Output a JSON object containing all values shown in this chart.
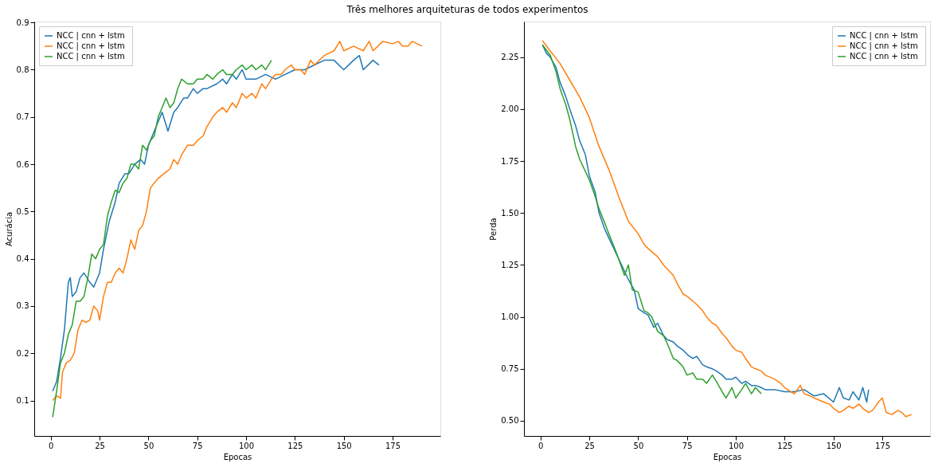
{
  "chart_data": [
    {
      "type": "line",
      "title": "Três melhores arquiteturas de todos experimentos",
      "xlabel": "Epocas",
      "ylabel": "Acurácia",
      "legend": "top left",
      "grid": false,
      "xlim": [
        -8.45,
        199.45
      ],
      "ylim": [
        0.025,
        0.902
      ],
      "xticks": [
        0,
        25,
        50,
        75,
        100,
        125,
        150,
        175
      ],
      "yticks": [
        0.1,
        0.2,
        0.3,
        0.4,
        0.5,
        0.6,
        0.7,
        0.8,
        0.9
      ],
      "series": [
        {
          "name": "NCC |  cnn + lstm",
          "color": "#1f77b4",
          "x": [
            1,
            3,
            5,
            7,
            9,
            10,
            11,
            13,
            15,
            17,
            20,
            22,
            25,
            27,
            30,
            33,
            35,
            38,
            40,
            43,
            46,
            48,
            50,
            53,
            55,
            57,
            60,
            63,
            65,
            68,
            70,
            73,
            75,
            78,
            80,
            85,
            88,
            90,
            93,
            95,
            98,
            100,
            105,
            110,
            115,
            120,
            125,
            130,
            135,
            140,
            145,
            150,
            155,
            158,
            160,
            165,
            168
          ],
          "values": [
            0.12,
            0.14,
            0.19,
            0.25,
            0.35,
            0.36,
            0.32,
            0.33,
            0.36,
            0.37,
            0.35,
            0.34,
            0.37,
            0.42,
            0.48,
            0.52,
            0.56,
            0.58,
            0.58,
            0.6,
            0.61,
            0.6,
            0.64,
            0.67,
            0.69,
            0.71,
            0.67,
            0.71,
            0.72,
            0.74,
            0.74,
            0.76,
            0.75,
            0.76,
            0.76,
            0.77,
            0.78,
            0.77,
            0.79,
            0.78,
            0.8,
            0.78,
            0.78,
            0.79,
            0.78,
            0.79,
            0.8,
            0.8,
            0.81,
            0.82,
            0.82,
            0.8,
            0.82,
            0.83,
            0.8,
            0.82,
            0.81
          ]
        },
        {
          "name": "NCC |  cnn + lstm",
          "color": "#ff7f0e",
          "x": [
            1,
            3,
            5,
            6,
            8,
            10,
            12,
            14,
            16,
            18,
            20,
            22,
            24,
            25,
            27,
            29,
            31,
            33,
            35,
            37,
            39,
            41,
            43,
            45,
            47,
            49,
            51,
            53,
            55,
            58,
            61,
            63,
            65,
            67,
            70,
            73,
            75,
            78,
            80,
            83,
            85,
            88,
            90,
            93,
            95,
            98,
            100,
            103,
            105,
            108,
            110,
            113,
            115,
            118,
            120,
            123,
            125,
            128,
            130,
            133,
            135,
            140,
            145,
            148,
            150,
            155,
            160,
            163,
            165,
            170,
            175,
            178,
            180,
            183,
            185,
            190
          ],
          "values": [
            0.1,
            0.11,
            0.105,
            0.16,
            0.18,
            0.185,
            0.2,
            0.25,
            0.27,
            0.265,
            0.27,
            0.3,
            0.29,
            0.27,
            0.32,
            0.35,
            0.35,
            0.37,
            0.38,
            0.37,
            0.4,
            0.44,
            0.42,
            0.46,
            0.47,
            0.5,
            0.55,
            0.56,
            0.57,
            0.58,
            0.59,
            0.61,
            0.6,
            0.62,
            0.64,
            0.64,
            0.65,
            0.66,
            0.68,
            0.7,
            0.71,
            0.72,
            0.71,
            0.73,
            0.72,
            0.75,
            0.74,
            0.75,
            0.74,
            0.77,
            0.76,
            0.78,
            0.79,
            0.79,
            0.8,
            0.81,
            0.8,
            0.8,
            0.79,
            0.82,
            0.81,
            0.83,
            0.84,
            0.86,
            0.84,
            0.85,
            0.84,
            0.86,
            0.84,
            0.86,
            0.855,
            0.86,
            0.85,
            0.85,
            0.86,
            0.85
          ]
        },
        {
          "name": "NCC |  cnn + lstm",
          "color": "#2ca02c",
          "x": [
            1,
            3,
            5,
            7,
            9,
            11,
            13,
            15,
            17,
            19,
            21,
            23,
            25,
            27,
            29,
            31,
            33,
            35,
            37,
            39,
            41,
            43,
            45,
            47,
            49,
            51,
            53,
            55,
            57,
            59,
            61,
            63,
            65,
            67,
            70,
            73,
            75,
            78,
            80,
            83,
            85,
            88,
            90,
            93,
            95,
            98,
            100,
            103,
            105,
            108,
            110,
            113
          ],
          "values": [
            0.065,
            0.12,
            0.18,
            0.2,
            0.24,
            0.26,
            0.31,
            0.31,
            0.32,
            0.36,
            0.41,
            0.4,
            0.42,
            0.43,
            0.49,
            0.52,
            0.545,
            0.54,
            0.56,
            0.57,
            0.6,
            0.6,
            0.59,
            0.64,
            0.63,
            0.65,
            0.66,
            0.7,
            0.72,
            0.74,
            0.72,
            0.73,
            0.76,
            0.78,
            0.77,
            0.77,
            0.78,
            0.78,
            0.79,
            0.78,
            0.79,
            0.8,
            0.79,
            0.79,
            0.8,
            0.81,
            0.8,
            0.81,
            0.8,
            0.81,
            0.8,
            0.82
          ]
        }
      ]
    },
    {
      "type": "line",
      "xlabel": "Epocas",
      "ylabel": "Perda",
      "legend": "top right",
      "grid": false,
      "xlim": [
        -8.45,
        199.45
      ],
      "ylim": [
        0.427,
        2.422
      ],
      "xticks": [
        0,
        25,
        50,
        75,
        100,
        125,
        150,
        175
      ],
      "yticks": [
        {
          "value": 0.5,
          "label": "0.50"
        },
        {
          "value": 0.75,
          "label": "0.75"
        },
        {
          "value": 1,
          "label": "1.00"
        },
        {
          "value": 1.25,
          "label": "1.25"
        },
        {
          "value": 1.5,
          "label": "1.50"
        },
        {
          "value": 1.75,
          "label": "1.75"
        },
        {
          "value": 2,
          "label": "2.00"
        },
        {
          "value": 2.25,
          "label": "2.25"
        }
      ],
      "series": [
        {
          "name": "NCC |  cnn + lstm",
          "color": "#1f77b4",
          "x": [
            1,
            3,
            5,
            8,
            10,
            13,
            15,
            18,
            20,
            23,
            25,
            28,
            30,
            33,
            35,
            38,
            40,
            43,
            45,
            48,
            50,
            53,
            55,
            58,
            60,
            63,
            65,
            68,
            70,
            73,
            75,
            78,
            80,
            83,
            85,
            88,
            90,
            93,
            95,
            98,
            100,
            103,
            105,
            108,
            110,
            113,
            115,
            120,
            125,
            130,
            135,
            140,
            145,
            150,
            153,
            155,
            158,
            160,
            163,
            165,
            167,
            168
          ],
          "values": [
            2.31,
            2.27,
            2.25,
            2.2,
            2.13,
            2.06,
            2.0,
            1.92,
            1.85,
            1.78,
            1.68,
            1.6,
            1.5,
            1.42,
            1.38,
            1.32,
            1.28,
            1.22,
            1.18,
            1.13,
            1.04,
            1.02,
            1.01,
            0.95,
            0.97,
            0.91,
            0.89,
            0.88,
            0.86,
            0.84,
            0.82,
            0.8,
            0.81,
            0.77,
            0.76,
            0.75,
            0.74,
            0.72,
            0.7,
            0.7,
            0.71,
            0.68,
            0.69,
            0.67,
            0.67,
            0.66,
            0.65,
            0.65,
            0.64,
            0.64,
            0.65,
            0.62,
            0.63,
            0.59,
            0.66,
            0.61,
            0.6,
            0.64,
            0.6,
            0.66,
            0.59,
            0.65
          ]
        },
        {
          "name": "NCC |  cnn + lstm",
          "color": "#ff7f0e",
          "x": [
            1,
            5,
            10,
            15,
            20,
            25,
            30,
            35,
            40,
            45,
            50,
            53,
            55,
            60,
            63,
            65,
            68,
            70,
            73,
            75,
            80,
            83,
            85,
            88,
            90,
            93,
            95,
            98,
            100,
            103,
            105,
            108,
            110,
            113,
            115,
            120,
            123,
            125,
            128,
            130,
            133,
            135,
            138,
            140,
            145,
            148,
            150,
            153,
            155,
            158,
            160,
            163,
            165,
            168,
            170,
            173,
            175,
            177,
            180,
            183,
            185,
            187,
            190
          ],
          "values": [
            2.33,
            2.28,
            2.22,
            2.14,
            2.06,
            1.96,
            1.82,
            1.71,
            1.58,
            1.46,
            1.4,
            1.35,
            1.33,
            1.29,
            1.25,
            1.23,
            1.2,
            1.16,
            1.11,
            1.1,
            1.06,
            1.03,
            1.0,
            0.97,
            0.96,
            0.92,
            0.9,
            0.86,
            0.84,
            0.83,
            0.8,
            0.76,
            0.75,
            0.74,
            0.72,
            0.7,
            0.68,
            0.66,
            0.64,
            0.63,
            0.67,
            0.63,
            0.62,
            0.61,
            0.59,
            0.58,
            0.56,
            0.54,
            0.55,
            0.57,
            0.56,
            0.58,
            0.56,
            0.54,
            0.55,
            0.59,
            0.61,
            0.54,
            0.53,
            0.55,
            0.54,
            0.52,
            0.53
          ]
        },
        {
          "name": "NCC |  cnn + lstm",
          "color": "#2ca02c",
          "x": [
            1,
            5,
            8,
            10,
            13,
            15,
            18,
            20,
            23,
            25,
            28,
            30,
            33,
            35,
            38,
            40,
            43,
            45,
            47,
            50,
            53,
            55,
            57,
            60,
            63,
            65,
            68,
            70,
            73,
            75,
            78,
            80,
            83,
            85,
            88,
            90,
            93,
            95,
            98,
            100,
            103,
            105,
            108,
            110,
            113
          ],
          "values": [
            2.31,
            2.26,
            2.18,
            2.1,
            2.02,
            1.95,
            1.82,
            1.76,
            1.7,
            1.66,
            1.58,
            1.52,
            1.45,
            1.4,
            1.33,
            1.28,
            1.2,
            1.25,
            1.13,
            1.12,
            1.03,
            1.02,
            1.0,
            0.93,
            0.91,
            0.87,
            0.8,
            0.79,
            0.76,
            0.72,
            0.73,
            0.7,
            0.7,
            0.68,
            0.72,
            0.69,
            0.64,
            0.61,
            0.66,
            0.61,
            0.65,
            0.68,
            0.63,
            0.66,
            0.63
          ]
        }
      ]
    }
  ]
}
